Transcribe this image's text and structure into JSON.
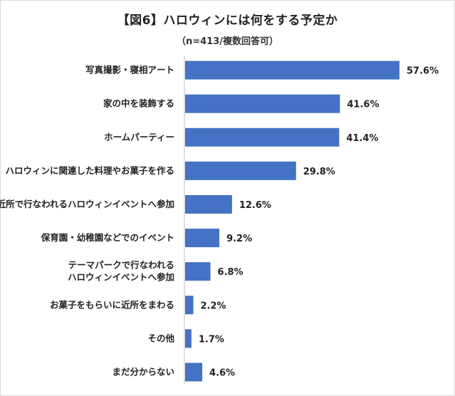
{
  "chart_data": {
    "type": "bar",
    "orientation": "horizontal",
    "title": "【図6】ハロウィンには何をする予定か",
    "subtitle": "（n=413/複数回答可）",
    "categories": [
      [
        "写真撮影・寝相アート"
      ],
      [
        "家の中を装飾する"
      ],
      [
        "ホームパーティー"
      ],
      [
        "ハロウィンに関連した料理やお菓子を作る"
      ],
      [
        "近所で行なわれるハロウィンイベントへ参加"
      ],
      [
        "保育園・幼稚園などでのイベント"
      ],
      [
        "テーマパークで行なわれる",
        "ハロウィンイベントへ参加"
      ],
      [
        "お菓子をもらいに近所をまわる"
      ],
      [
        "その他"
      ],
      [
        "まだ分からない"
      ]
    ],
    "values": [
      57.6,
      41.6,
      41.4,
      29.8,
      12.6,
      9.2,
      6.8,
      2.2,
      1.7,
      4.6
    ],
    "value_labels": [
      "57.6%",
      "41.6%",
      "41.4%",
      "29.8%",
      "12.6%",
      "9.2%",
      "6.8%",
      "2.2%",
      "1.7%",
      "4.6%"
    ],
    "xlim": [
      0,
      65
    ],
    "unit": "%",
    "highlight_index": 0,
    "colors": {
      "bar": "#4472C4",
      "highlight_label": "#E6338A",
      "label": "#222222",
      "axis": "#bfbfbf"
    },
    "grid": false,
    "legend": "none"
  }
}
